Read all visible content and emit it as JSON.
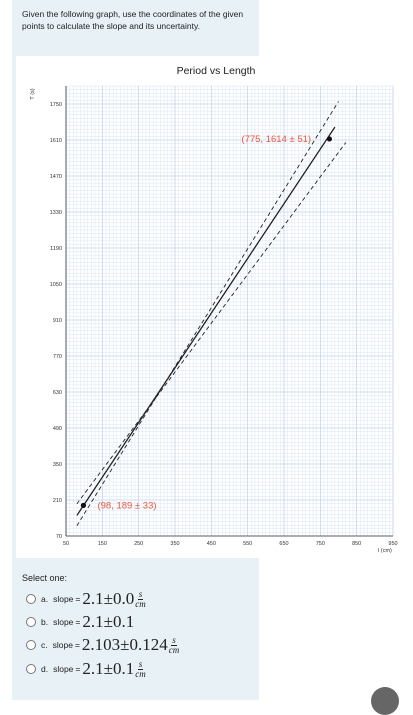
{
  "question": {
    "text": "Given the following graph, use the coordinates of the given points to calculate the slope and its uncertainty."
  },
  "chart_data": {
    "type": "line",
    "title": "Period vs Length",
    "xlabel": "l (cm)",
    "ylabel": "T (s)",
    "xlim": [
      50,
      950
    ],
    "ylim": [
      70,
      1820
    ],
    "x_ticks": [
      "50",
      "150",
      "250",
      "350",
      "450",
      "550",
      "650",
      "750",
      "850",
      "950"
    ],
    "y_ticks": [
      "70",
      "210",
      "350",
      "490",
      "630",
      "770",
      "910",
      "1050",
      "1190",
      "1330",
      "1470",
      "1610",
      "1750"
    ],
    "grid": true,
    "series": [
      {
        "style": "solid",
        "x": [
          80,
          790
        ],
        "y": [
          150,
          1660
        ]
      },
      {
        "style": "dashed",
        "x": [
          80,
          800
        ],
        "y": [
          110,
          1760
        ]
      },
      {
        "style": "dashed",
        "x": [
          80,
          820
        ],
        "y": [
          195,
          1600
        ]
      }
    ],
    "points": [
      {
        "x": 98,
        "y": 189,
        "label": "(98, 189 ± 33)"
      },
      {
        "x": 775,
        "y": 1614,
        "label": "(775, 1614 ± 51)"
      }
    ],
    "annotation_color": "#e8573f",
    "line_color": "#222222"
  },
  "answers": {
    "select_label": "Select one:",
    "options": [
      {
        "letter": "a.",
        "slope_label": "slope",
        "eq": "=",
        "value": "2.1±0.0",
        "unit_num": "s",
        "unit_den": "cm"
      },
      {
        "letter": "b.",
        "slope_label": "slope",
        "eq": "=",
        "value": "2.1±0.1"
      },
      {
        "letter": "c.",
        "slope_label": "slope",
        "eq": "=",
        "value": "2.103±0.124",
        "unit_num": "s",
        "unit_den": "cm"
      },
      {
        "letter": "d.",
        "slope_label": "slope",
        "eq": "=",
        "value": "2.1±0.1",
        "unit_num": "s",
        "unit_den": "cm"
      }
    ]
  }
}
